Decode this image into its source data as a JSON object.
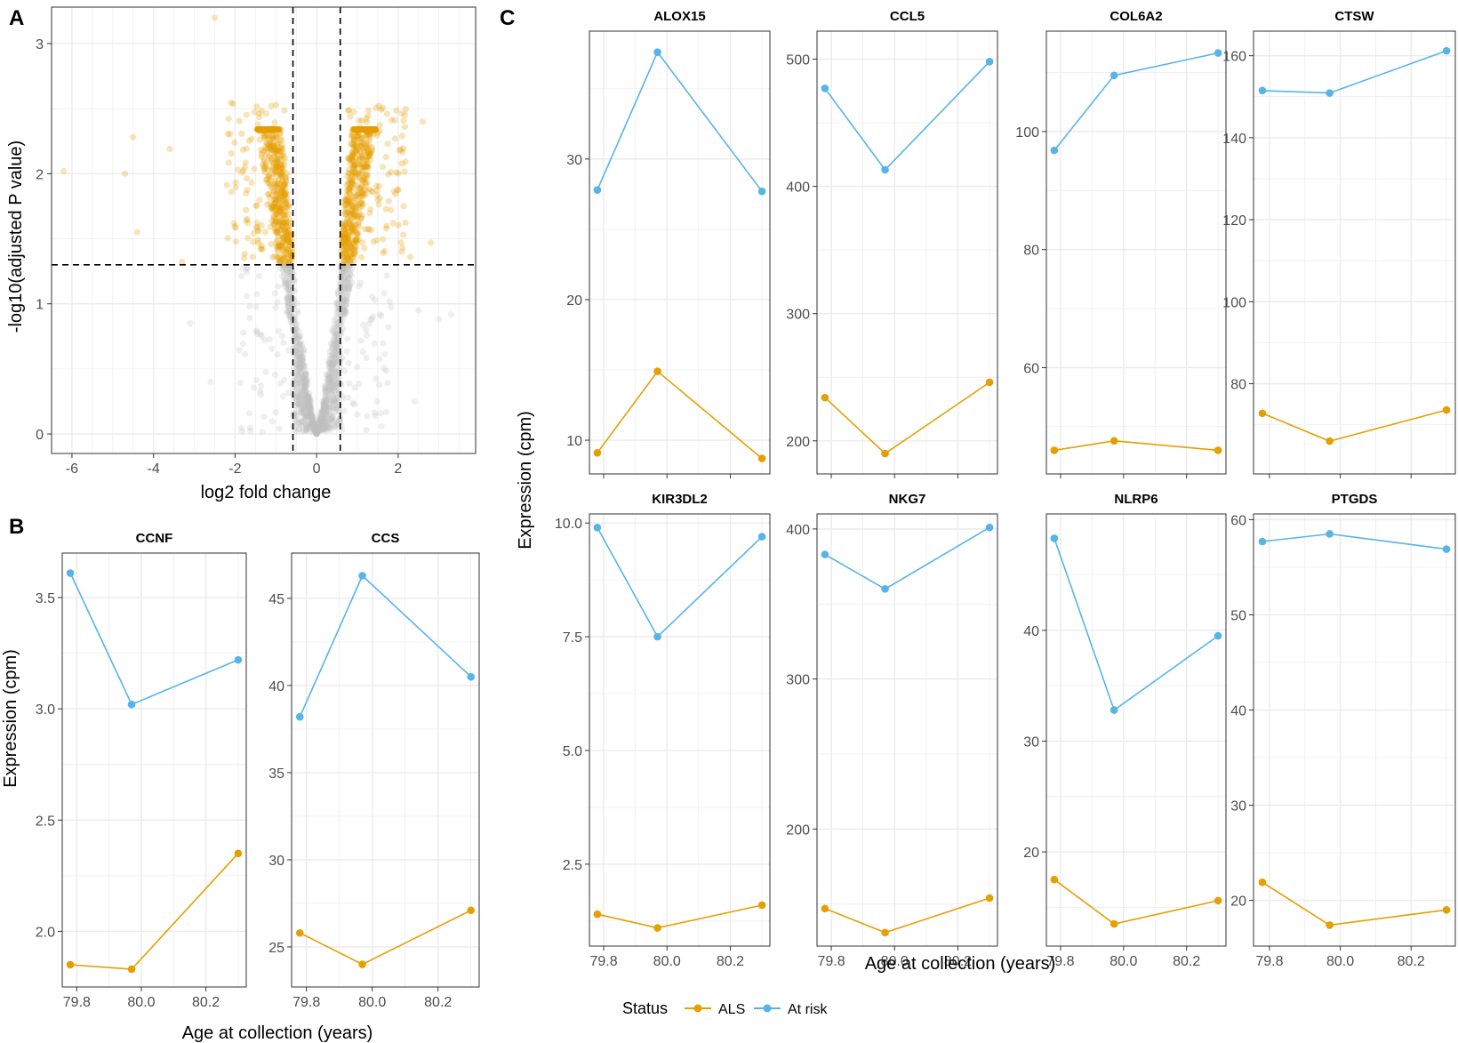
{
  "panel_labels": {
    "a": "A",
    "b": "B",
    "c": "C"
  },
  "colors": {
    "als": "#E69F00",
    "at_risk": "#56B4E9",
    "ns": "#BEBEBE",
    "grid": "#EBEBEB",
    "frame": "#333333"
  },
  "legend": {
    "title": "Status",
    "items": [
      "ALS",
      "At risk"
    ],
    "position": "bottom"
  },
  "chart_data": [
    {
      "type": "scatter",
      "panel": "A",
      "title": "",
      "xlabel": "log2 fold change",
      "ylabel": "-log10(adjusted P value)",
      "xlim": [
        -6.5,
        3.9
      ],
      "ylim": [
        -0.15,
        3.28
      ],
      "xticks": [
        -6,
        -4,
        -2,
        0,
        2
      ],
      "xtick_labels": [
        "-6",
        "-4",
        "-2",
        "0",
        "2"
      ],
      "yticks": [
        0,
        1,
        2,
        3
      ],
      "ytick_labels": [
        "0",
        "1",
        "2",
        "3"
      ],
      "thresholds": {
        "fold_change": [
          -0.58,
          0.58
        ],
        "significance": 1.3
      },
      "notable_points": {
        "x": [
          -6.2,
          -4.7,
          -4.5,
          -4.4,
          -3.6,
          -3.3,
          -2.5,
          -3.1,
          2.6,
          2.8,
          2.3,
          2.5,
          3.0,
          3.3,
          -2.6,
          2.4
        ],
        "y": [
          2.02,
          2.0,
          2.28,
          1.55,
          2.19,
          1.32,
          3.2,
          0.85,
          2.4,
          1.47,
          1.36,
          0.95,
          0.88,
          0.92,
          0.4,
          0.25
        ]
      }
    },
    {
      "type": "line",
      "panel": "B",
      "xlabel": "Age at collection (years)",
      "ylabel": "Expression (cpm)",
      "x": [
        79.78,
        79.97,
        80.3
      ],
      "xticks": [
        79.8,
        80.0,
        80.2
      ],
      "xtick_labels": [
        "79.8",
        "80.0",
        "80.2"
      ],
      "facets": [
        {
          "title": "CCNF",
          "ylim": [
            1.75,
            3.7
          ],
          "yticks": [
            2.0,
            2.5,
            3.0,
            3.5
          ],
          "ytick_labels": [
            "2.0",
            "2.5",
            "3.0",
            "3.5"
          ],
          "series": [
            {
              "name": "ALS",
              "values": [
                1.85,
                1.83,
                2.35
              ]
            },
            {
              "name": "At risk",
              "values": [
                3.61,
                3.02,
                3.22
              ]
            }
          ]
        },
        {
          "title": "CCS",
          "ylim": [
            22.7,
            47.6
          ],
          "yticks": [
            25,
            30,
            35,
            40,
            45
          ],
          "ytick_labels": [
            "25",
            "30",
            "35",
            "40",
            "45"
          ],
          "series": [
            {
              "name": "ALS",
              "values": [
                25.8,
                24.0,
                27.1
              ]
            },
            {
              "name": "At risk",
              "values": [
                38.2,
                46.3,
                40.5
              ]
            }
          ]
        }
      ]
    },
    {
      "type": "line",
      "panel": "C",
      "xlabel": "Age at collection (years)",
      "ylabel": "Expression (cpm)",
      "x": [
        79.78,
        79.97,
        80.3
      ],
      "xticks": [
        79.8,
        80.0,
        80.2
      ],
      "xtick_labels": [
        "79.8",
        "80.0",
        "80.2"
      ],
      "facets": [
        {
          "title": "ALOX15",
          "ylim": [
            7.6,
            39.1
          ],
          "yticks": [
            10,
            20,
            30
          ],
          "ytick_labels": [
            "10",
            "20",
            "30"
          ],
          "series": [
            {
              "name": "ALS",
              "values": [
                9.1,
                14.9,
                8.7
              ]
            },
            {
              "name": "At risk",
              "values": [
                27.8,
                37.6,
                27.7
              ]
            }
          ]
        },
        {
          "title": "CCL5",
          "ylim": [
            174,
            522
          ],
          "yticks": [
            200,
            300,
            400,
            500
          ],
          "ytick_labels": [
            "200",
            "300",
            "400",
            "500"
          ],
          "series": [
            {
              "name": "ALS",
              "values": [
                234,
                190,
                246
              ]
            },
            {
              "name": "At risk",
              "values": [
                477,
                413,
                498
              ]
            }
          ]
        },
        {
          "title": "COL6A2",
          "ylim": [
            42,
            117
          ],
          "yticks": [
            60,
            80,
            100
          ],
          "ytick_labels": [
            "60",
            "80",
            "100"
          ],
          "series": [
            {
              "name": "ALS",
              "values": [
                46.0,
                47.6,
                46.0
              ]
            },
            {
              "name": "At risk",
              "values": [
                96.8,
                109.5,
                113.3
              ]
            }
          ]
        },
        {
          "title": "CTSW",
          "ylim": [
            58,
            166
          ],
          "yticks": [
            80,
            100,
            120,
            140,
            160
          ],
          "ytick_labels": [
            "80",
            "100",
            "120",
            "140",
            "160"
          ],
          "series": [
            {
              "name": "ALS",
              "values": [
                72.8,
                66.0,
                73.6
              ]
            },
            {
              "name": "At risk",
              "values": [
                151.5,
                150.9,
                161.2
              ]
            }
          ]
        },
        {
          "title": "KIR3DL2",
          "ylim": [
            0.7,
            10.2
          ],
          "yticks": [
            2.5,
            5.0,
            7.5,
            10.0
          ],
          "ytick_labels": [
            "2.5",
            "5.0",
            "7.5",
            "10.0"
          ],
          "series": [
            {
              "name": "ALS",
              "values": [
                1.4,
                1.1,
                1.6
              ]
            },
            {
              "name": "At risk",
              "values": [
                9.9,
                7.5,
                9.7
              ]
            }
          ]
        },
        {
          "title": "NKG7",
          "ylim": [
            122,
            410
          ],
          "yticks": [
            200,
            300,
            400
          ],
          "ytick_labels": [
            "200",
            "300",
            "400"
          ],
          "series": [
            {
              "name": "ALS",
              "values": [
                147,
                131,
                154
              ]
            },
            {
              "name": "At risk",
              "values": [
                383,
                360,
                401
              ]
            }
          ]
        },
        {
          "title": "NLRP6",
          "ylim": [
            11.5,
            50.5
          ],
          "yticks": [
            20,
            30,
            40
          ],
          "ytick_labels": [
            "20",
            "30",
            "40"
          ],
          "series": [
            {
              "name": "ALS",
              "values": [
                17.5,
                13.5,
                15.6
              ]
            },
            {
              "name": "At risk",
              "values": [
                48.3,
                32.8,
                39.5
              ]
            }
          ]
        },
        {
          "title": "PTGDS",
          "ylim": [
            15.2,
            60.6
          ],
          "yticks": [
            20,
            30,
            40,
            50,
            60
          ],
          "ytick_labels": [
            "20",
            "30",
            "40",
            "50",
            "60"
          ],
          "series": [
            {
              "name": "ALS",
              "values": [
                21.9,
                17.4,
                19.0
              ]
            },
            {
              "name": "At risk",
              "values": [
                57.7,
                58.5,
                56.9
              ]
            }
          ]
        }
      ]
    }
  ]
}
